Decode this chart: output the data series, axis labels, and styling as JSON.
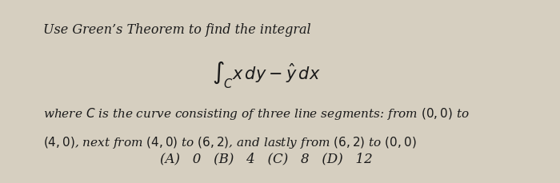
{
  "title_line1": "Use Green’s Theorem to find the integral",
  "integral_expr": "$\\int_C x\\,dy - \\hat{y}\\,dx$",
  "body_text_line1": "where $C$ is the curve consisting of three line segments: from $(0, 0)$ to",
  "body_text_line2": "$(4, 0)$, next from $(4, 0)$ to $(6, 2)$, and lastly from $(6, 2)$ to $(0, 0)$",
  "choices": [
    "(A)   0",
    "(B)   4",
    "(C)   8",
    "(D)   12"
  ],
  "bg_color": "#d6cfc0",
  "text_color": "#1a1a1a",
  "font_size_title": 11.5,
  "font_size_body": 11,
  "font_size_choices": 12,
  "font_size_integral": 15
}
